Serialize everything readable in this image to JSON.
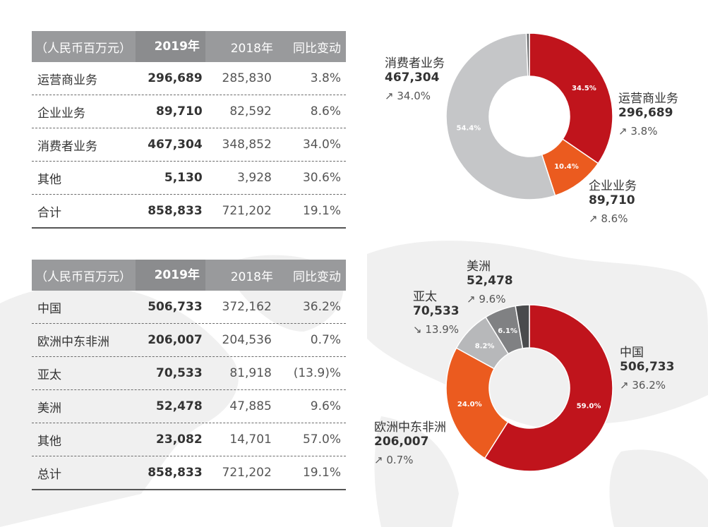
{
  "tables": [
    {
      "header": {
        "unit": "（人民币百万元）",
        "col_2019": "2019年",
        "col_2018": "2018年",
        "col_yoy": "同比变动"
      },
      "rows": [
        {
          "label": "运营商业务",
          "v2019": "296,689",
          "v2018": "285,830",
          "yoy": "3.8%"
        },
        {
          "label": "企业业务",
          "v2019": "89,710",
          "v2018": "82,592",
          "yoy": "8.6%"
        },
        {
          "label": "消费者业务",
          "v2019": "467,304",
          "v2018": "348,852",
          "yoy": "34.0%"
        },
        {
          "label": "其他",
          "v2019": "5,130",
          "v2018": "3,928",
          "yoy": "30.6%"
        },
        {
          "label": "合计",
          "v2019": "858,833",
          "v2018": "721,202",
          "yoy": "19.1%"
        }
      ]
    },
    {
      "header": {
        "unit": "（人民币百万元）",
        "col_2019": "2019年",
        "col_2018": "2018年",
        "col_yoy": "同比变动"
      },
      "rows": [
        {
          "label": "中国",
          "v2019": "506,733",
          "v2018": "372,162",
          "yoy": "36.2%"
        },
        {
          "label": "欧洲中东非洲",
          "v2019": "206,007",
          "v2018": "204,536",
          "yoy": "0.7%"
        },
        {
          "label": "亚太",
          "v2019": "70,533",
          "v2018": "81,918",
          "yoy": "(13.9)%"
        },
        {
          "label": "美洲",
          "v2019": "52,478",
          "v2018": "47,885",
          "yoy": "9.6%"
        },
        {
          "label": "其他",
          "v2019": "23,082",
          "v2018": "14,701",
          "yoy": "57.0%"
        },
        {
          "label": "总计",
          "v2019": "858,833",
          "v2018": "721,202",
          "yoy": "19.1%"
        }
      ]
    }
  ],
  "chart_data": [
    {
      "type": "pie",
      "donut": true,
      "slices": [
        {
          "label": "运营商业务",
          "value": 296689,
          "percent": 34.5,
          "pct_label": "34.5%",
          "growth": "3.8%",
          "growth_dir": "up",
          "color": "#c0141c"
        },
        {
          "label": "企业业务",
          "value": 89710,
          "percent": 10.4,
          "pct_label": "10.4%",
          "growth": "8.6%",
          "growth_dir": "up",
          "color": "#eb5b1f"
        },
        {
          "label": "消费者业务",
          "value": 467304,
          "percent": 54.4,
          "pct_label": "54.4%",
          "growth": "34.0%",
          "growth_dir": "up",
          "color": "#c5c6c8"
        },
        {
          "label": "其他",
          "value": 5130,
          "percent": 0.6,
          "pct_label": "",
          "growth": "",
          "growth_dir": "",
          "color": "#6b6c6e"
        }
      ]
    },
    {
      "type": "pie",
      "donut": true,
      "slices": [
        {
          "label": "中国",
          "value": 506733,
          "percent": 59.0,
          "pct_label": "59.0%",
          "growth": "36.2%",
          "growth_dir": "up",
          "color": "#c0141c"
        },
        {
          "label": "欧洲中东非洲",
          "value": 206007,
          "percent": 24.0,
          "pct_label": "24.0%",
          "growth": "0.7%",
          "growth_dir": "up",
          "color": "#eb5b1f"
        },
        {
          "label": "亚太",
          "value": 70533,
          "percent": 8.2,
          "pct_label": "8.2%",
          "growth": "13.9%",
          "growth_dir": "down",
          "color": "#b7b8ba"
        },
        {
          "label": "美洲",
          "value": 52478,
          "percent": 6.1,
          "pct_label": "6.1%",
          "growth": "9.6%",
          "growth_dir": "up",
          "color": "#808183"
        },
        {
          "label": "其他",
          "value": 23082,
          "percent": 2.7,
          "pct_label": "",
          "growth": "",
          "growth_dir": "",
          "color": "#4a4b4d"
        }
      ]
    }
  ],
  "callouts": [
    [
      {
        "name": "消费者业务",
        "value": "467,304",
        "growth": "34.0%",
        "arrow": "↗"
      },
      {
        "name": "运营商业务",
        "value": "296,689",
        "growth": "3.8%",
        "arrow": "↗"
      },
      {
        "name": "企业业务",
        "value": "89,710",
        "growth": "8.6%",
        "arrow": "↗"
      }
    ],
    [
      {
        "name": "美洲",
        "value": "52,478",
        "growth": "9.6%",
        "arrow": "↗"
      },
      {
        "name": "亚太",
        "value": "70,533",
        "growth": "13.9%",
        "arrow": "↘"
      },
      {
        "name": "中国",
        "value": "506,733",
        "growth": "36.2%",
        "arrow": "↗"
      },
      {
        "name": "欧洲中东非洲",
        "value": "206,007",
        "growth": "0.7%",
        "arrow": "↗"
      }
    ]
  ]
}
